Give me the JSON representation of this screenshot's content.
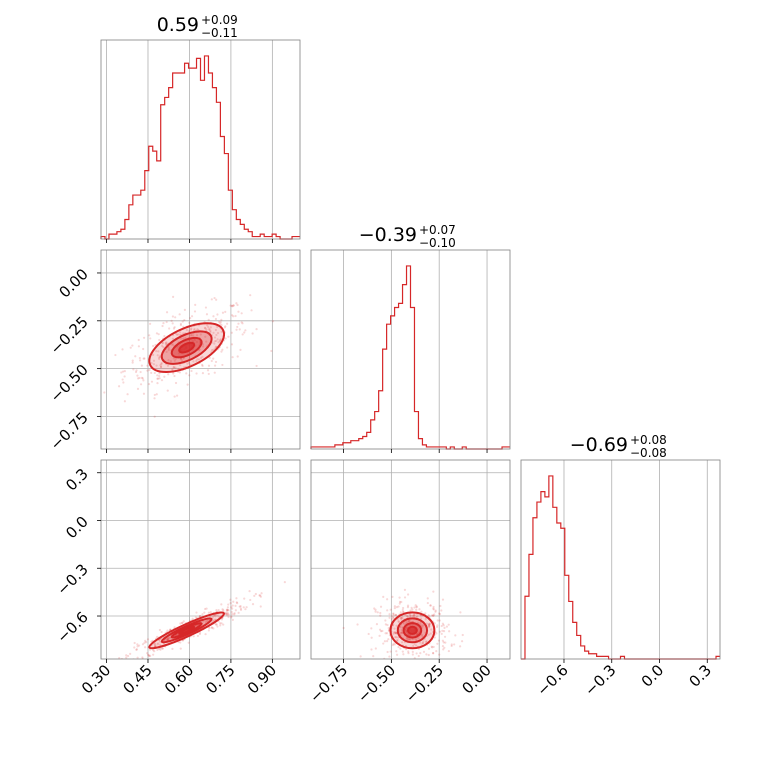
{
  "color": "#d62728",
  "chart_data": {
    "type": "corner",
    "parameters": [
      {
        "title_value": "0.59",
        "title_plus": "+0.09",
        "title_minus": "−0.11",
        "range": [
          0.28,
          1.0
        ],
        "ticks": [
          0.3,
          0.45,
          0.6,
          0.75,
          0.9
        ],
        "tick_labels": [
          "0.30",
          "0.45",
          "0.60",
          "0.75",
          "0.90"
        ]
      },
      {
        "title_value": "−0.39",
        "title_plus": "+0.07",
        "title_minus": "−0.10",
        "range": [
          -0.92,
          0.12
        ],
        "ticks": [
          -0.75,
          -0.5,
          -0.25,
          0.0
        ],
        "tick_labels": [
          "−0.75",
          "−0.50",
          "−0.25",
          "0.00"
        ]
      },
      {
        "title_value": "−0.69",
        "title_plus": "+0.08",
        "title_minus": "−0.08",
        "range": [
          -0.87,
          0.38
        ],
        "ticks": [
          -0.6,
          -0.3,
          0.0,
          0.3
        ],
        "tick_labels": [
          "−0.6",
          "−0.3",
          "0.0",
          "0.3"
        ]
      }
    ],
    "histograms": [
      {
        "parameter": 0,
        "bin_start": 0.28,
        "bin_width": 0.0144,
        "counts": [
          1,
          0,
          2,
          2,
          3,
          4,
          8,
          14,
          18,
          18,
          20,
          28,
          38,
          36,
          32,
          55,
          58,
          62,
          68,
          68,
          68,
          72,
          70,
          70,
          74,
          65,
          75,
          68,
          62,
          56,
          42,
          35,
          20,
          12,
          8,
          6,
          4,
          3,
          1,
          1,
          2,
          1,
          1,
          2,
          1,
          0,
          0,
          0,
          1,
          1
        ]
      },
      {
        "parameter": 1,
        "bin_start": -0.92,
        "bin_width": 0.0208,
        "counts": [
          1,
          1,
          1,
          1,
          1,
          1,
          2,
          2,
          3,
          3,
          4,
          4,
          5,
          6,
          8,
          14,
          18,
          28,
          48,
          60,
          64,
          68,
          70,
          79,
          88,
          68,
          18,
          5,
          2,
          1,
          1,
          1,
          1,
          1,
          0,
          1,
          0,
          0,
          1,
          0,
          0,
          0,
          0,
          0,
          0,
          0,
          0,
          0,
          1,
          1
        ]
      },
      {
        "parameter": 2,
        "bin_start": -0.87,
        "bin_width": 0.025,
        "counts": [
          0,
          24,
          40,
          54,
          60,
          64,
          62,
          70,
          58,
          52,
          50,
          32,
          22,
          14,
          9,
          5,
          3,
          2,
          2,
          1,
          1,
          1,
          0,
          0,
          0,
          1,
          0,
          0,
          0,
          0,
          0,
          0,
          0,
          0,
          0,
          0,
          0,
          0,
          0,
          0,
          0,
          0,
          0,
          0,
          0,
          0,
          0,
          0,
          0,
          1
        ]
      }
    ],
    "correlations": [
      {
        "x_parameter": 0,
        "y_parameter": 1,
        "correlation": 0.55
      },
      {
        "x_parameter": 0,
        "y_parameter": 2,
        "correlation": 0.93
      },
      {
        "x_parameter": 1,
        "y_parameter": 2,
        "correlation": 0.0
      }
    ]
  }
}
